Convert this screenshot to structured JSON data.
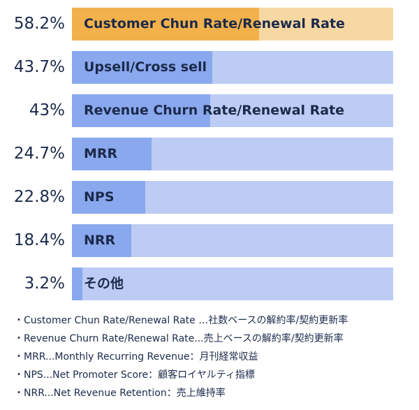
{
  "chart_data": {
    "type": "bar",
    "orientation": "horizontal",
    "categories": [
      "Customer Chun Rate/Renewal Rate",
      "Upsell/Cross sell",
      "Revenue Churn Rate/Renewal Rate",
      "MRR",
      "NPS",
      "NRR",
      "その他"
    ],
    "values": [
      58.2,
      43.7,
      43,
      24.7,
      22.8,
      18.4,
      3.2
    ],
    "value_labels": [
      "58.2%",
      "43.7%",
      "43%",
      "24.7%",
      "22.8%",
      "18.4%",
      "3.2%"
    ],
    "xlim": [
      0,
      100
    ],
    "unit": "%",
    "grid": false,
    "highlight_index": 0,
    "colors": {
      "bar": "#8aa8ee",
      "track": "#bcccf4",
      "highlight_bar": "#f3b14c",
      "highlight_track": "#f7d8a2",
      "text": "#1b2a4a"
    }
  },
  "notes": [
    "Customer Chun Rate/Renewal Rate …社数ベースの解約率/契約更新率",
    "Revenue Churn Rate/Renewal Rate...売上ベースの解約率/契約更新率",
    "MRR...Monthly Recurring Revenue：月刊経常収益",
    "NPS...Net Promoter Score：顧客ロイヤルティ指標",
    "NRR...Net Revenue Retention：売上維持率"
  ],
  "bullet": "・"
}
